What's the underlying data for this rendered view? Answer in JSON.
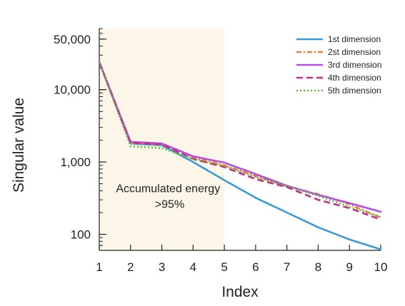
{
  "chart_data": {
    "type": "line",
    "xlabel": "Index",
    "ylabel": "Singular value",
    "yscale": "log",
    "xlim": [
      1,
      10
    ],
    "ylim": [
      60,
      70000
    ],
    "x": [
      1,
      2,
      3,
      4,
      5,
      6,
      7,
      8,
      9,
      10
    ],
    "xticks": [
      "1",
      "2",
      "3",
      "4",
      "5",
      "6",
      "7",
      "8",
      "9",
      "10"
    ],
    "yticks": [
      {
        "value": 100,
        "label": "100"
      },
      {
        "value": 1000,
        "label": "1,000"
      },
      {
        "value": 10000,
        "label": "10,000"
      },
      {
        "value": 50000,
        "label": "50,000"
      }
    ],
    "legend_position": "top-right",
    "grid": false,
    "highlight": {
      "x_from": 1,
      "x_to": 5,
      "color": "#fbf6e8"
    },
    "annotation": {
      "lines": [
        "Accumulated energy",
        ">95%"
      ],
      "x": 3.25,
      "y": 380
    },
    "series": [
      {
        "name": "1st dimension",
        "color": "#3a9ad9",
        "dash": "solid",
        "values": [
          24000,
          1800,
          1700,
          1000,
          560,
          320,
          200,
          125,
          85,
          62
        ]
      },
      {
        "name": "2st dimension",
        "color": "#f07a3a",
        "dash": "dashdot",
        "values": [
          24000,
          1850,
          1750,
          1150,
          900,
          640,
          460,
          360,
          260,
          170
        ]
      },
      {
        "name": "3rd dimension",
        "color": "#b44fe0",
        "dash": "solid",
        "values": [
          24000,
          1900,
          1800,
          1200,
          980,
          680,
          470,
          350,
          270,
          205
        ]
      },
      {
        "name": "4th dimension",
        "color": "#c52d8b",
        "dash": "dashed",
        "values": [
          24000,
          1850,
          1750,
          1100,
          850,
          580,
          450,
          300,
          230,
          160
        ]
      },
      {
        "name": "5th dimension",
        "color": "#5dbb3f",
        "dash": "dotted",
        "values": [
          24000,
          1650,
          1550,
          1100,
          880,
          620,
          470,
          340,
          240,
          175
        ]
      }
    ]
  }
}
